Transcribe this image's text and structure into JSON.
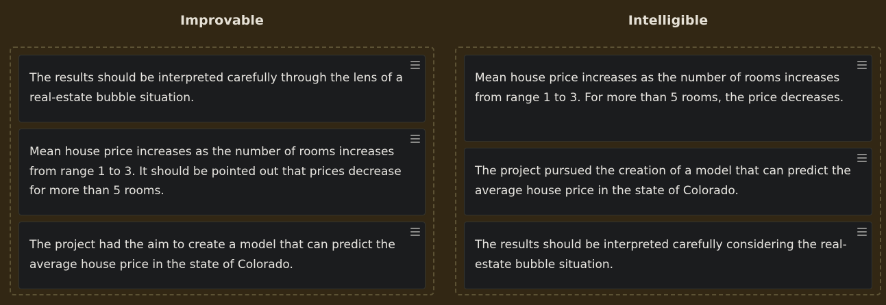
{
  "columns": [
    {
      "title": "Improvable",
      "cards": [
        {
          "text": "The results should be interpreted carefully through the lens of a real-estate bubble situation."
        },
        {
          "text": "Mean house price increases as the number of rooms increases from range 1 to 3. It should be pointed out that prices decrease for more than 5 rooms."
        },
        {
          "text": "The project had the aim to create a model that can predict the average house price in the state of Colorado."
        }
      ]
    },
    {
      "title": "Intelligible",
      "cards": [
        {
          "text": "Mean house price increases as the number of rooms increases from range 1 to 3. For more than 5 rooms, the price decreases."
        },
        {
          "text": "The project pursued the creation of a model that can predict the average house price in the state of Colorado."
        },
        {
          "text": "The results should be interpreted carefully considering the real-estate bubble situation."
        }
      ]
    }
  ],
  "icons": {
    "drag_handle": "drag-handle-icon"
  },
  "colors": {
    "background": "#322714",
    "card": "#1b1c1e",
    "dashed_border": "#5c5234"
  }
}
